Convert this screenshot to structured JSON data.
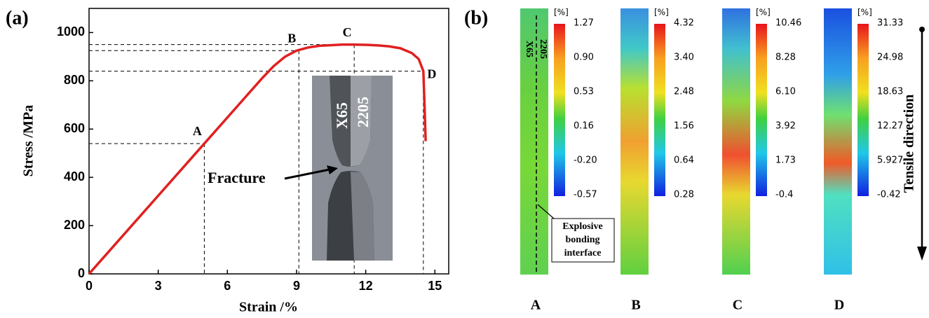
{
  "chart_data": {
    "type": "line",
    "panel_label": "(a)",
    "x_label": "Strain /%",
    "y_label": "Stress /MPa",
    "x": [
      0,
      1,
      2,
      3,
      4,
      5,
      6,
      7,
      7.5,
      8,
      8.5,
      9,
      9.5,
      10,
      11,
      11.5,
      12,
      12.5,
      13,
      13.5,
      14,
      14.3,
      14.5,
      14.55,
      14.6
    ],
    "values": [
      0,
      108,
      216,
      324,
      432,
      540,
      648,
      756,
      810,
      860,
      900,
      925,
      938,
      945,
      950,
      950,
      949,
      947,
      943,
      935,
      915,
      890,
      840,
      700,
      550
    ],
    "color": "#e02020",
    "xlim": [
      0,
      15.6
    ],
    "ylim": [
      0,
      1100
    ],
    "xticks": [
      0,
      3,
      6,
      9,
      12,
      15
    ],
    "yticks": [
      0,
      200,
      400,
      600,
      800,
      1000
    ],
    "points": [
      {
        "label": "A",
        "x": 5,
        "y": 540
      },
      {
        "label": "B",
        "x": 9.1,
        "y": 925
      },
      {
        "label": "C",
        "x": 11.5,
        "y": 950
      },
      {
        "label": "D",
        "x": 14.5,
        "y": 840
      }
    ],
    "inset": {
      "left_label": "X65",
      "right_label": "2205",
      "annotation": "Fracture"
    }
  },
  "panel_b": {
    "panel_label": "(b)",
    "maps": [
      {
        "label": "A",
        "unit": "[%]",
        "scale": [
          "1.27",
          "0.90",
          "0.53",
          "0.16",
          "-0.20",
          "-0.57"
        ]
      },
      {
        "label": "B",
        "unit": "[%]",
        "scale": [
          "4.32",
          "3.40",
          "2.48",
          "1.56",
          "0.64",
          "0.28"
        ]
      },
      {
        "label": "C",
        "unit": "[%]",
        "scale": [
          "10.46",
          "8.28",
          "6.10",
          "3.92",
          "1.73",
          "-0.4"
        ]
      },
      {
        "label": "D",
        "unit": "[%]",
        "scale": [
          "31.33",
          "24.98",
          "18.63",
          "12.27",
          "5.927",
          "-0.42"
        ]
      }
    ],
    "map_a_left": "X65",
    "map_a_right": "2205",
    "interface_note": [
      "Explosive",
      "bonding",
      "interface"
    ],
    "direction": "Tensile direction"
  }
}
